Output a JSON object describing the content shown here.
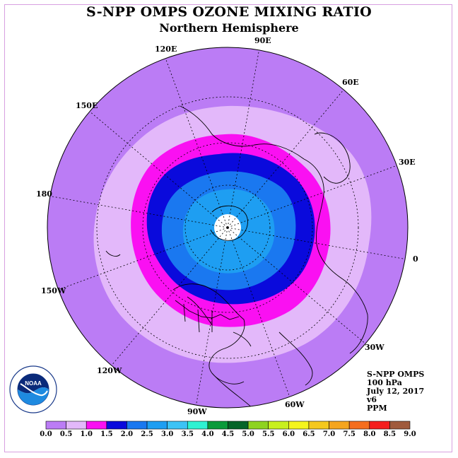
{
  "header": {
    "title": "S-NPP OMPS OZONE MIXING RATIO",
    "subtitle": "Northern Hemisphere"
  },
  "longitude_labels": [
    "90E",
    "60E",
    "30E",
    "0",
    "30W",
    "60W",
    "90W",
    "120W",
    "150W",
    "180",
    "150E",
    "120E"
  ],
  "info": {
    "instrument": "S-NPP OMPS",
    "level": "100 hPa",
    "date": "July 12, 2017",
    "version": "v6",
    "units": "PPM"
  },
  "logo": {
    "text": "NOAA",
    "ring_text": "NATIONAL OCEANIC AND ATMOSPHERIC ADMINISTRATION • U.S. DEPARTMENT OF COMMERCE"
  },
  "colorbar": {
    "ticks": [
      "0.0",
      "0.5",
      "1.0",
      "1.5",
      "2.0",
      "2.5",
      "3.0",
      "3.5",
      "4.0",
      "4.5",
      "5.0",
      "5.5",
      "6.0",
      "6.5",
      "7.0",
      "7.5",
      "8.0",
      "8.5",
      "9.0"
    ],
    "colors": [
      "#bb7cf5",
      "#e3b8fa",
      "#fa10f2",
      "#0a0adc",
      "#1a78f0",
      "#1e9ef2",
      "#3cc3f5",
      "#2ef2d2",
      "#0a9a3a",
      "#056428",
      "#8ed320",
      "#c8f01e",
      "#f5f51e",
      "#f5c81e",
      "#f5a51e",
      "#f56e1e",
      "#f51e1e",
      "#a05a3c"
    ]
  },
  "map_colors": {
    "band_0_0.5": "#bb7cf5",
    "band_0.5_1.0": "#e3b8fa",
    "band_1.0_1.5": "#fa10f2",
    "band_1.5_2.0": "#0a0adc",
    "band_2.0_2.5": "#1a78f0",
    "band_2.5_3.0": "#1e9ef2",
    "pole_nodata": "#ffffff"
  }
}
